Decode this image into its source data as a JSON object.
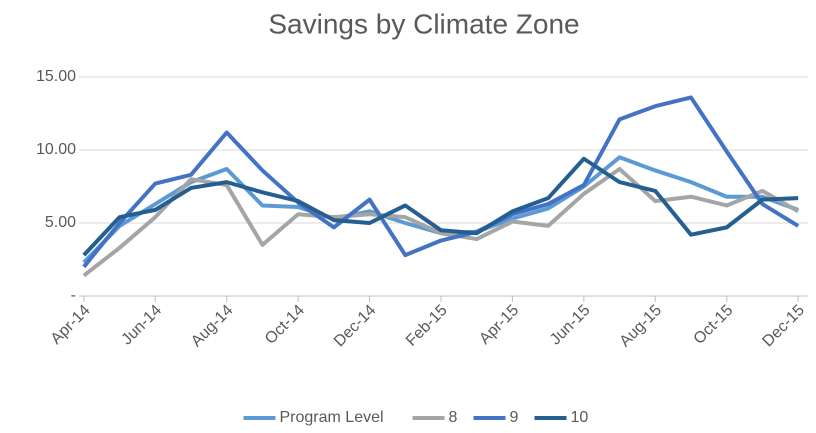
{
  "chart_data": {
    "type": "line",
    "title": "Savings by Climate Zone",
    "categories": [
      "Apr-14",
      null,
      "Jun-14",
      null,
      "Aug-14",
      null,
      "Oct-14",
      null,
      "Dec-14",
      null,
      "Feb-15",
      null,
      "Apr-15",
      null,
      "Jun-15",
      null,
      "Aug-15",
      null,
      "Oct-15",
      null,
      "Dec-15"
    ],
    "series": [
      {
        "name": "Program Level",
        "color": "#5b9bd5",
        "values": [
          2.3,
          4.8,
          6.3,
          7.8,
          8.7,
          6.2,
          6.1,
          5.3,
          5.8,
          5.0,
          4.3,
          4.4,
          5.3,
          6.0,
          7.5,
          9.5,
          8.6,
          7.8,
          6.8,
          6.8,
          5.9
        ]
      },
      {
        "name": "8",
        "color": "#a5a5a5",
        "values": [
          1.4,
          3.3,
          5.4,
          8.0,
          7.6,
          3.5,
          5.6,
          5.4,
          5.6,
          5.4,
          4.3,
          3.9,
          5.1,
          4.8,
          7.0,
          8.7,
          6.5,
          6.8,
          6.2,
          7.2,
          5.8
        ]
      },
      {
        "name": "9",
        "color": "#4472c4",
        "values": [
          2.0,
          5.0,
          7.7,
          8.3,
          11.2,
          8.6,
          6.4,
          4.7,
          6.6,
          2.8,
          3.8,
          4.4,
          5.6,
          6.3,
          7.6,
          12.1,
          13.0,
          13.6,
          9.9,
          6.3,
          4.8
        ]
      },
      {
        "name": "10",
        "color": "#255e91",
        "values": [
          2.8,
          5.4,
          5.9,
          7.4,
          7.8,
          7.1,
          6.5,
          5.2,
          5.0,
          6.2,
          4.5,
          4.3,
          5.8,
          6.7,
          9.4,
          7.8,
          7.2,
          4.2,
          4.7,
          6.6,
          6.7
        ]
      }
    ],
    "ylim": [
      0,
      15
    ],
    "yticks": [
      {
        "value": 0,
        "label": "-"
      },
      {
        "value": 5,
        "label": "5.00"
      },
      {
        "value": 10,
        "label": "10.00"
      },
      {
        "value": 15,
        "label": "15.00"
      }
    ],
    "grid": true,
    "legend": "bottom"
  }
}
